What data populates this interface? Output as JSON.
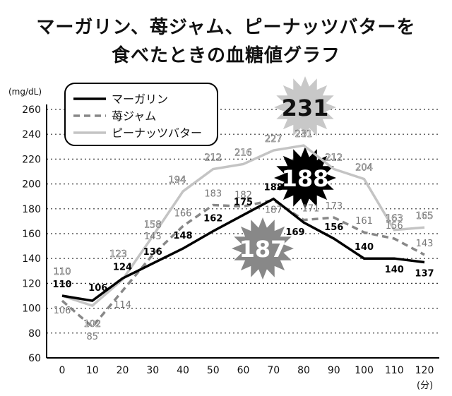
{
  "chart_data": {
    "type": "line",
    "title_lines": [
      "マーガリン、苺ジャム、ピーナッツバターを",
      "食べたときの血糖値グラフ"
    ],
    "ylabel": "(mg/dL)",
    "xlabel": "(分)",
    "ylim": [
      60,
      260
    ],
    "yticks": [
      60,
      80,
      100,
      120,
      140,
      160,
      180,
      200,
      220,
      240,
      260
    ],
    "x": [
      0,
      10,
      20,
      30,
      40,
      50,
      60,
      70,
      80,
      90,
      100,
      110,
      120
    ],
    "grid": "horizontal dotted",
    "legend_position": "top-left",
    "series": [
      {
        "name": "マーガリン",
        "color": "#000000",
        "style": "solid",
        "values": [
          110,
          106,
          124,
          136,
          148,
          162,
          175,
          188,
          169,
          156,
          140,
          140,
          137
        ]
      },
      {
        "name": "苺ジャム",
        "color": "#888888",
        "style": "dashed",
        "values": [
          106,
          85,
          114,
          143,
          166,
          183,
          182,
          187,
          171,
          173,
          161,
          156,
          143
        ]
      },
      {
        "name": "ピーナッツバター",
        "color": "#c4c4c4",
        "style": "solid",
        "values": [
          110,
          102,
          123,
          158,
          194,
          212,
          216,
          227,
          231,
          212,
          204,
          163,
          165
        ]
      }
    ],
    "peak_badges": [
      {
        "text": "231",
        "color": "#c8c8c8",
        "text_color": "#111111"
      },
      {
        "text": "188",
        "color": "#000000",
        "text_color": "#ffffff"
      },
      {
        "text": "187",
        "color": "#888888",
        "text_color": "#ffffff"
      }
    ]
  }
}
